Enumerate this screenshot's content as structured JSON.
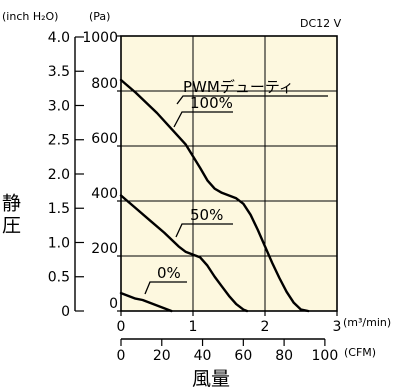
{
  "chart_data": {
    "type": "line",
    "model_label": "DC12 V",
    "y_axis_title": "静圧",
    "x_axis_title": "風量",
    "y_units": {
      "inch": "(inch H₂O)",
      "pa": "(Pa)"
    },
    "x_units": {
      "m3": "(m³/min)",
      "cfm": "(CFM)"
    },
    "y_pa_ticks": [
      "1000",
      "800",
      "600",
      "400",
      "200",
      "0"
    ],
    "y_inch_ticks": [
      "4.0",
      "3.5",
      "3.0",
      "2.5",
      "2.0",
      "1.5",
      "1.0",
      "0.5",
      "0"
    ],
    "x_m3_ticks": [
      "0",
      "1",
      "2",
      "3"
    ],
    "x_cfm_ticks": [
      "0",
      "20",
      "40",
      "60",
      "80",
      "100"
    ],
    "xlim": [
      0,
      3
    ],
    "ylim": [
      0,
      1000
    ],
    "grid": true,
    "legend_title": "PWMデューティ",
    "series": [
      {
        "name": "100%",
        "x": [
          0,
          0.2,
          0.5,
          0.9,
          1.1,
          1.2,
          1.3,
          1.4,
          1.5,
          1.6,
          1.7,
          1.8,
          1.9,
          2.0,
          2.1,
          2.2,
          2.3,
          2.4,
          2.5,
          2.6
        ],
        "y": [
          840,
          795,
          720,
          605,
          520,
          475,
          445,
          430,
          420,
          410,
          390,
          350,
          295,
          235,
          175,
          120,
          70,
          30,
          5,
          0
        ]
      },
      {
        "name": "50%",
        "x": [
          0,
          0.2,
          0.4,
          0.6,
          0.8,
          0.9,
          1.0,
          1.1,
          1.2,
          1.3,
          1.4,
          1.5,
          1.6,
          1.7,
          1.75
        ],
        "y": [
          420,
          375,
          330,
          285,
          235,
          215,
          205,
          195,
          165,
          125,
          90,
          55,
          25,
          5,
          0
        ]
      },
      {
        "name": "0%",
        "x": [
          0,
          0.1,
          0.2,
          0.3,
          0.4,
          0.5,
          0.6,
          0.7
        ],
        "y": [
          65,
          55,
          45,
          40,
          30,
          20,
          10,
          0
        ]
      }
    ]
  }
}
